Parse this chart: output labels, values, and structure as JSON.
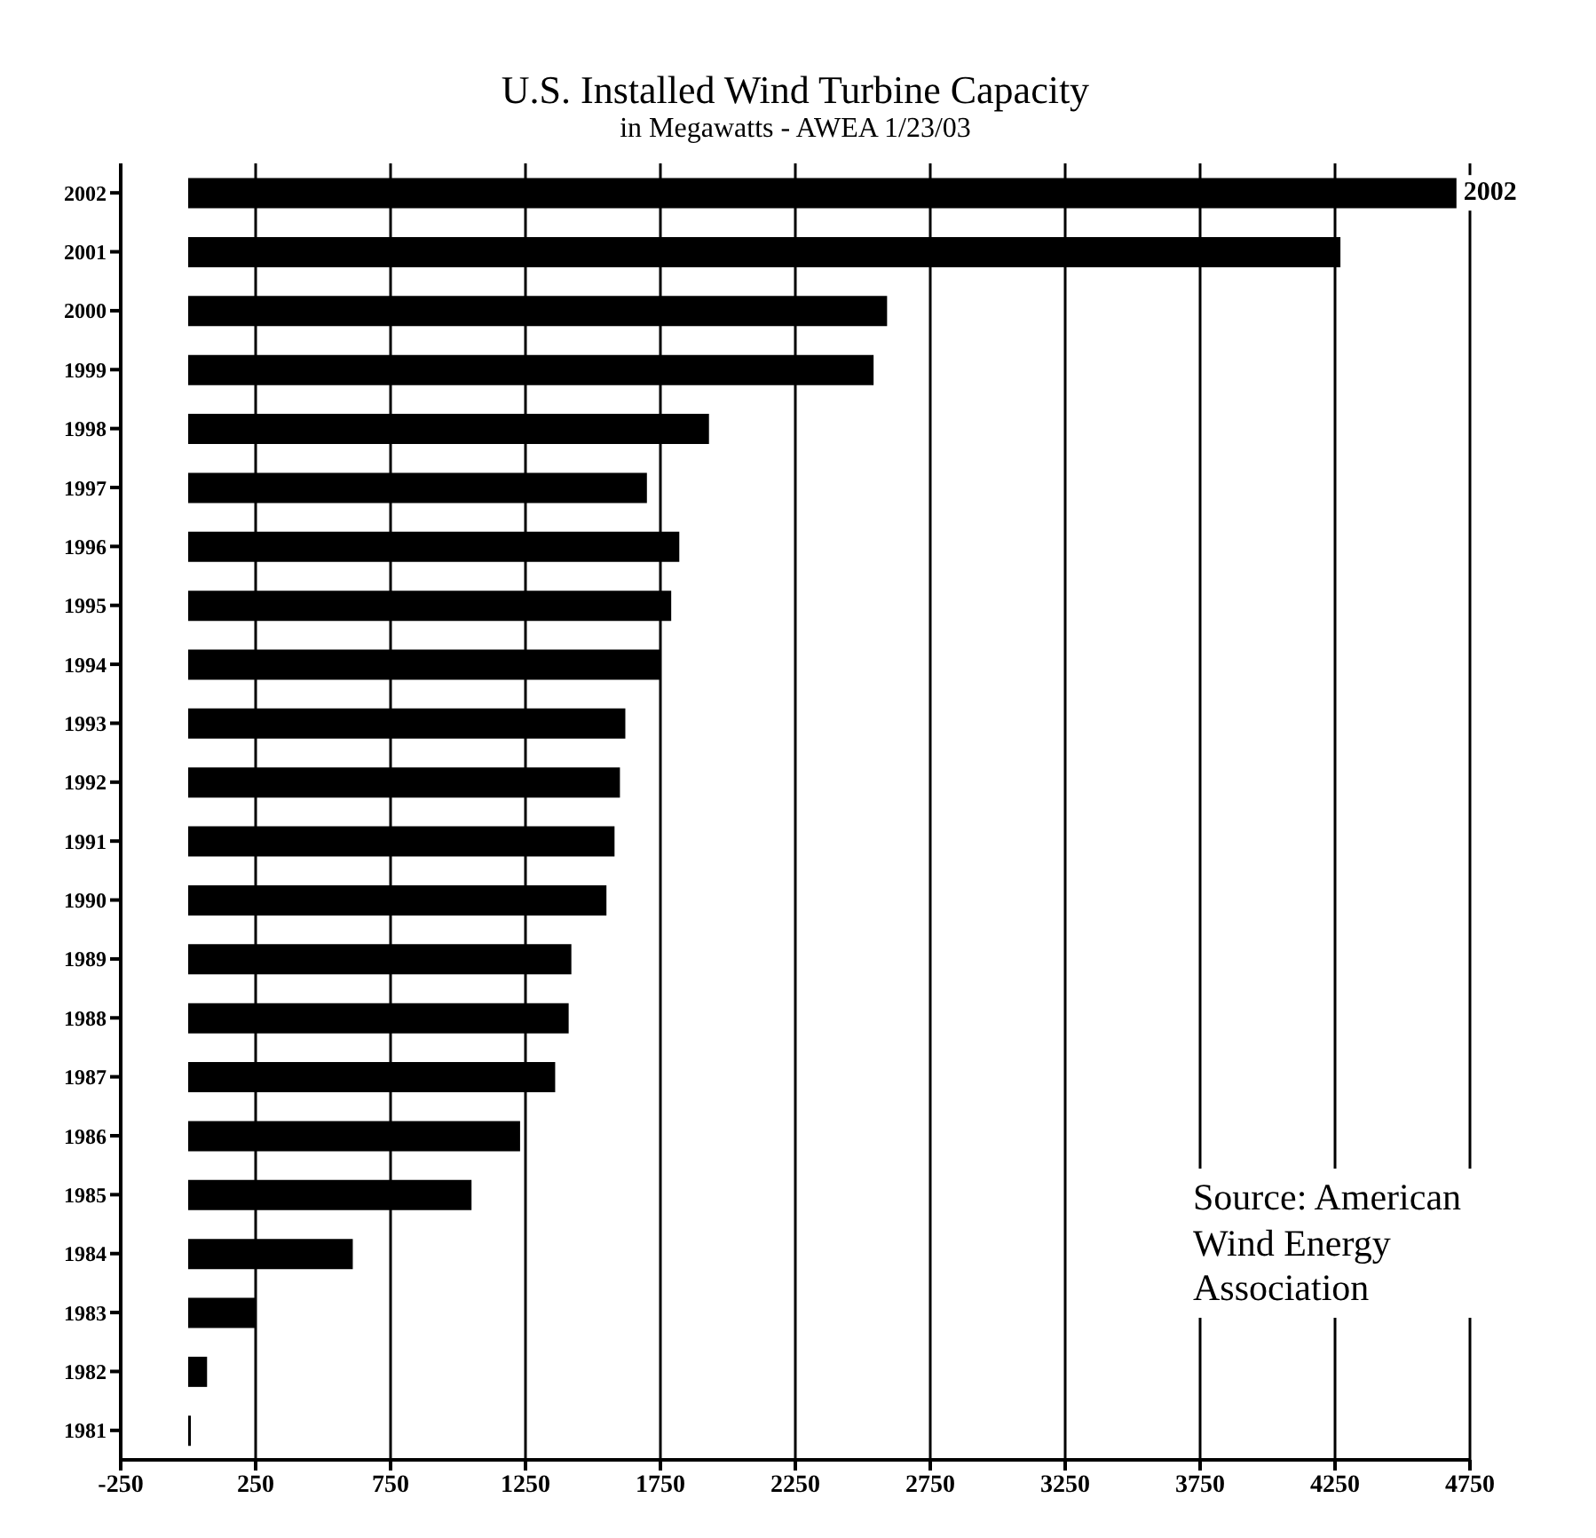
{
  "chart_data": {
    "type": "bar",
    "orientation": "horizontal",
    "title": "U.S. Installed Wind Turbine Capacity",
    "subtitle": "in Megawatts - AWEA 1/23/03",
    "categories": [
      "2002",
      "2001",
      "2000",
      "1999",
      "1998",
      "1997",
      "1996",
      "1995",
      "1994",
      "1993",
      "1992",
      "1991",
      "1990",
      "1989",
      "1988",
      "1987",
      "1986",
      "1985",
      "1984",
      "1983",
      "1982",
      "1981"
    ],
    "values": [
      4700,
      4270,
      2590,
      2540,
      1930,
      1700,
      1820,
      1790,
      1750,
      1620,
      1600,
      1580,
      1550,
      1420,
      1410,
      1360,
      1230,
      1050,
      610,
      250,
      70,
      10
    ],
    "color": "#000000",
    "xlim": [
      -250,
      4750
    ],
    "xticks": [
      -250,
      250,
      750,
      1250,
      1750,
      2250,
      2750,
      3250,
      3750,
      4250,
      4750
    ],
    "grid": "x",
    "annotations": [
      {
        "text": "2002",
        "x": 4700,
        "y": "2002"
      },
      "Source: American Wind Energy Association"
    ]
  }
}
